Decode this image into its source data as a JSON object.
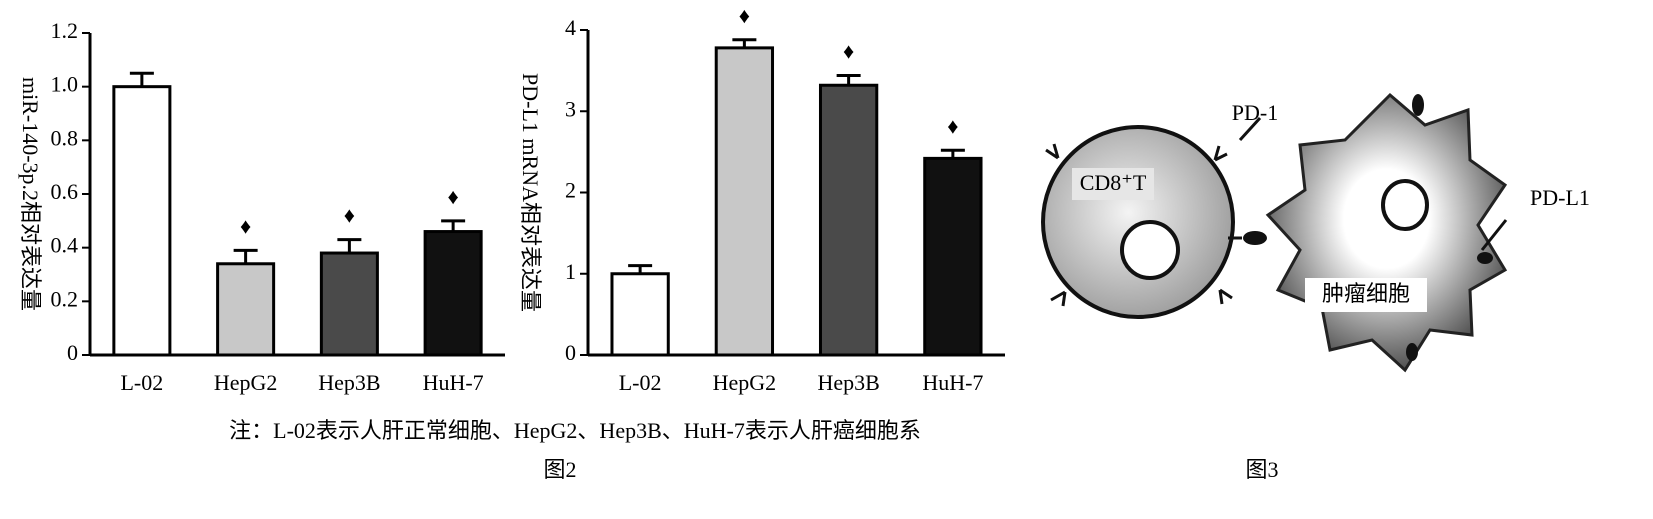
{
  "chart_data": [
    {
      "type": "bar",
      "y_label": "miR-140-3p.2相对表达量",
      "categories": [
        "L-02",
        "HepG2",
        "Hep3B",
        "HuH-7"
      ],
      "values": [
        1.0,
        0.34,
        0.38,
        0.46
      ],
      "errors": [
        0.05,
        0.05,
        0.05,
        0.04
      ],
      "colors": [
        "#ffffff",
        "#c8c8c8",
        "#4a4a4a",
        "#111111"
      ],
      "markers": [
        null,
        "♦",
        "♦",
        "♦"
      ],
      "ylim": [
        0,
        1.2
      ],
      "yticks": [
        0,
        0.2,
        0.4,
        0.6,
        0.8,
        {
          "value": 1,
          "label": "1.0"
        },
        1.2
      ]
    },
    {
      "type": "bar",
      "y_label": "PD-L1 mRNA相对表达量",
      "categories": [
        "L-02",
        "HepG2",
        "Hep3B",
        "HuH-7"
      ],
      "values": [
        1.0,
        3.78,
        3.32,
        2.42
      ],
      "errors": [
        0.1,
        0.1,
        0.12,
        0.1
      ],
      "colors": [
        "#ffffff",
        "#c8c8c8",
        "#4a4a4a",
        "#111111"
      ],
      "markers": [
        null,
        "♦",
        "♦",
        "♦"
      ],
      "ylim": [
        0,
        4
      ],
      "yticks": [
        0,
        1,
        2,
        3,
        4
      ]
    }
  ],
  "note": "注：L-02表示人肝正常细胞、HepG2、Hep3B、HuH-7表示人肝癌细胞系",
  "figure_2_label": "图2",
  "figure_3_label": "图3",
  "diagram": {
    "t_cell": "CD8⁺T",
    "pd1": "PD-1",
    "pdl1": "PD-L1",
    "tumor": "肿瘤细胞"
  }
}
